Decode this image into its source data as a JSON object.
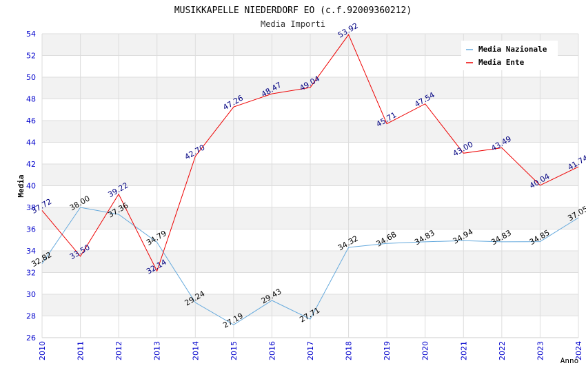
{
  "chart_data": {
    "type": "line",
    "title": "MUSIKKAPELLE NIEDERDORF EO (c.f.92009360212)",
    "subtitle": "Media Importi",
    "xlabel": "Anno",
    "ylabel": "Media",
    "ylim": [
      26,
      54
    ],
    "yticks": [
      "26",
      "28",
      "30",
      "32",
      "34",
      "36",
      "38",
      "40",
      "42",
      "44",
      "46",
      "48",
      "50",
      "52",
      "54"
    ],
    "categories": [
      "2010",
      "2011",
      "2012",
      "2013",
      "2014",
      "2015",
      "2016",
      "2017",
      "2018",
      "2019",
      "2020",
      "2021",
      "2022",
      "2023",
      "2024"
    ],
    "series": [
      {
        "name": "Media Nazionale",
        "color": "#66aadd",
        "label_color": "#000000",
        "values": [
          32.82,
          38.0,
          37.36,
          34.79,
          29.24,
          27.19,
          29.43,
          27.71,
          34.32,
          34.68,
          34.83,
          34.94,
          34.83,
          34.85,
          37.05
        ],
        "labels": [
          "32.82",
          "38.00",
          "37.36",
          "34.79",
          "29.24",
          "27.19",
          "29.43",
          "27.71",
          "34.32",
          "34.68",
          "34.83",
          "34.94",
          "34.83",
          "34.85",
          "37.05"
        ]
      },
      {
        "name": "Media Ente",
        "color": "#ee0000",
        "label_color": "#000080",
        "values": [
          37.72,
          33.5,
          39.22,
          32.14,
          42.7,
          47.26,
          48.47,
          49.04,
          53.92,
          45.71,
          47.54,
          43.0,
          43.49,
          40.04,
          41.74
        ],
        "labels": [
          "37.72",
          "33.50",
          "39.22",
          "32.14",
          "42.70",
          "47.26",
          "48.47",
          "49.04",
          "53.92",
          "45.71",
          "47.54",
          "43.00",
          "43.49",
          "40.04",
          "41.74"
        ]
      }
    ],
    "grid": true,
    "legend": "top-right"
  }
}
